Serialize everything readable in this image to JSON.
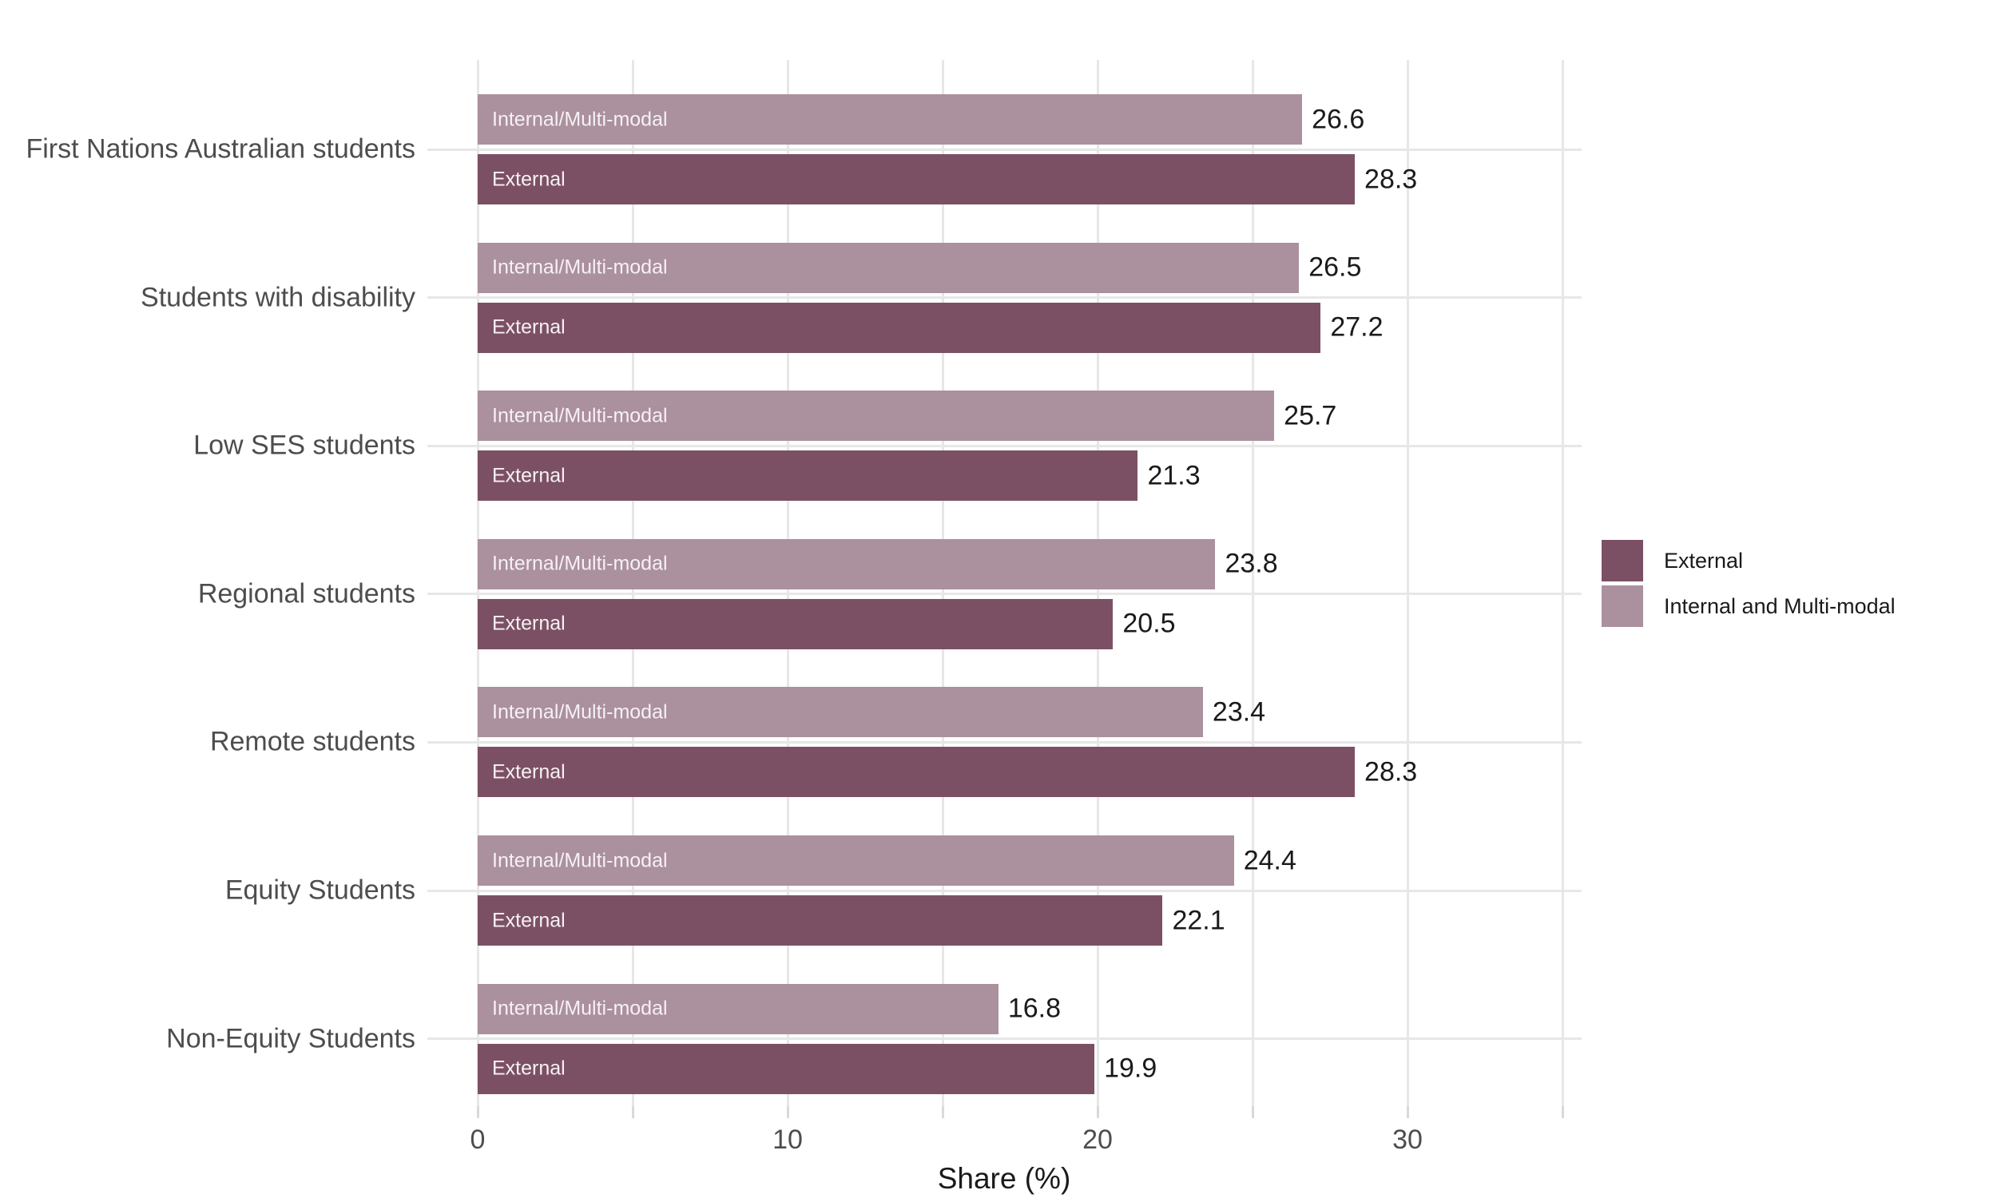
{
  "chart_data": {
    "type": "bar",
    "orientation": "horizontal",
    "title": "",
    "xlabel": "Share (%)",
    "ylabel": "",
    "xlim": [
      0,
      35.6
    ],
    "x_major_tick_labels": [
      0,
      10,
      20,
      30
    ],
    "x_gridline_values": [
      0,
      5,
      10,
      15,
      20,
      25,
      30,
      35
    ],
    "grid": "on",
    "legend_position": "right",
    "colors": {
      "external": "#7c5064",
      "internal_multimodal": "#ab909e",
      "gridline": "#e7e7e7",
      "axis_text": "#4d4d4d",
      "value_text": "#1a1a1a",
      "bar_inner_text": "#f6f1f3",
      "background": "#ffffff"
    },
    "categories": [
      "First Nations Australian students",
      "Students with disability",
      "Low SES students",
      "Regional students",
      "Remote students",
      "Equity Students",
      "Non-Equity Students"
    ],
    "series": [
      {
        "name": "External",
        "bar_label": "External",
        "color_key": "external",
        "values": [
          28.3,
          27.2,
          21.3,
          20.5,
          28.3,
          22.1,
          19.9
        ]
      },
      {
        "name": "Internal and Multi-modal",
        "bar_label": "Internal/Multi-modal",
        "color_key": "internal_multimodal",
        "values": [
          26.6,
          26.5,
          25.7,
          23.8,
          23.4,
          24.4,
          16.8
        ]
      }
    ]
  }
}
